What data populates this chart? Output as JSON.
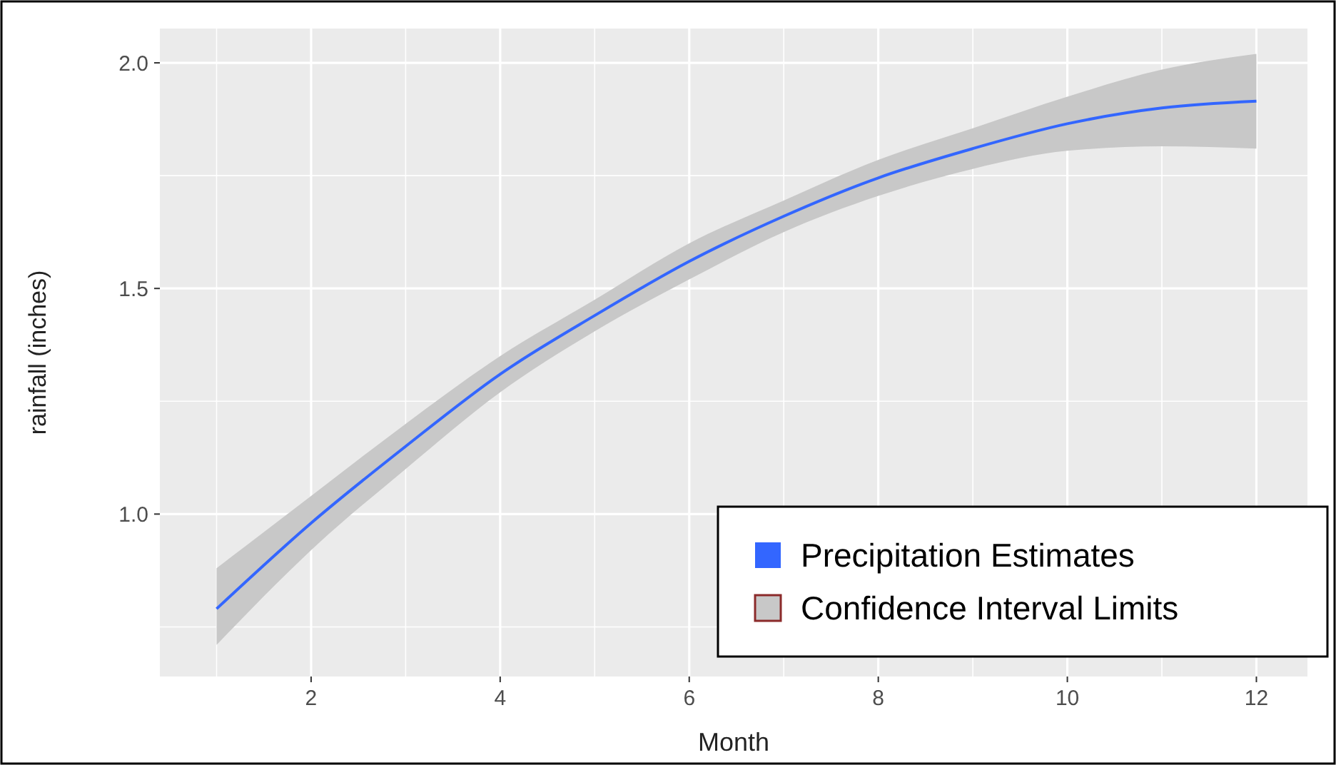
{
  "chart_data": {
    "type": "line",
    "xlabel": "Month",
    "ylabel": "rainfall (inches)",
    "x": [
      1,
      2,
      3,
      4,
      5,
      6,
      7,
      8,
      9,
      10,
      11,
      12
    ],
    "series": [
      {
        "name": "Precipitation Estimates",
        "color": "#3366ff",
        "values": [
          0.79,
          0.98,
          1.15,
          1.31,
          1.44,
          1.56,
          1.66,
          1.745,
          1.81,
          1.865,
          1.9,
          1.915
        ],
        "lower": [
          0.71,
          0.92,
          1.1,
          1.27,
          1.405,
          1.52,
          1.625,
          1.705,
          1.765,
          1.805,
          1.815,
          1.81
        ],
        "upper": [
          0.88,
          1.04,
          1.2,
          1.35,
          1.475,
          1.6,
          1.695,
          1.785,
          1.855,
          1.925,
          1.985,
          2.02
        ]
      }
    ],
    "annotations": [
      "Confidence Interval Limits"
    ],
    "xlim": [
      0.4,
      12.54
    ],
    "ylim": [
      0.64,
      2.076
    ],
    "xticks": [
      2,
      4,
      6,
      8,
      10,
      12
    ],
    "yticks": [
      {
        "value": 1,
        "label": "1.0"
      },
      1.5,
      {
        "value": 2,
        "label": "2.0"
      }
    ],
    "grid": true,
    "legend": "bottom right",
    "line_style": "solid",
    "marker": "none"
  }
}
